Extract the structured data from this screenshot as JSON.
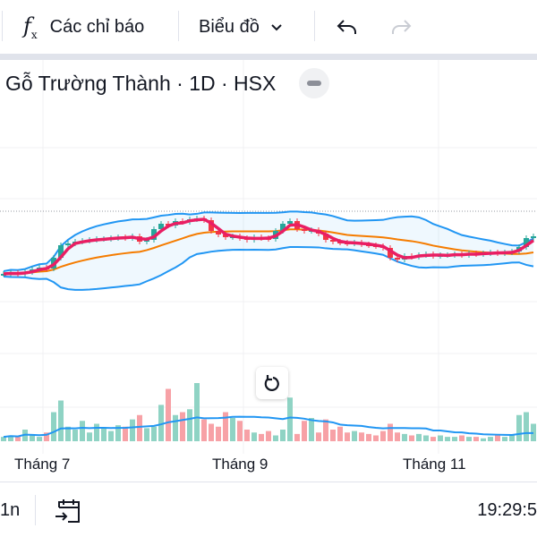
{
  "toolbar": {
    "indicators_label": "Các chỉ báo",
    "chart_type_label": "Biểu đồ"
  },
  "legend": {
    "title": "Gỗ Trường Thành · 1D · HSX"
  },
  "time_axis": [
    "Tháng 7",
    "Tháng 9",
    "Tháng 11"
  ],
  "bottom": {
    "range_label": "1n",
    "clock": "19:29:5"
  },
  "colors": {
    "up": "#26a69a",
    "down": "#f23645",
    "ma_short": "#e91e63",
    "ma_long": "#f57c00",
    "bands": "#2196f3",
    "vol_up": "#8fd3c4",
    "vol_down": "#f7a1a6"
  },
  "chart_data": {
    "type": "candlestick",
    "title": "Gỗ Trường Thành · 1D · HSX",
    "x_tick_labels": [
      "Tháng 7",
      "Tháng 9",
      "Tháng 11"
    ],
    "close": [
      9.4,
      9.5,
      9.4,
      9.6,
      9.9,
      10.1,
      10.0,
      11.2,
      12.6,
      12.8,
      13.0,
      13.1,
      13.2,
      13.3,
      13.3,
      13.4,
      13.5,
      13.4,
      13.6,
      13.0,
      13.2,
      14.4,
      15.0,
      14.8,
      15.3,
      15.2,
      15.5,
      15.6,
      15.4,
      14.2,
      13.8,
      13.5,
      13.6,
      13.4,
      13.2,
      13.5,
      13.4,
      13.3,
      14.2,
      15.0,
      15.3,
      14.4,
      14.2,
      14.3,
      13.9,
      13.2,
      13.0,
      12.9,
      12.8,
      12.9,
      12.7,
      12.6,
      12.5,
      12.3,
      11.2,
      11.0,
      11.4,
      11.3,
      11.5,
      11.6,
      11.4,
      11.5,
      11.5,
      11.6,
      11.5,
      11.7,
      11.6,
      11.7,
      11.8,
      11.7,
      11.8,
      11.9,
      12.4,
      13.4,
      13.6
    ],
    "volume": [
      3,
      4,
      3,
      8,
      4,
      3,
      6,
      20,
      28,
      10,
      8,
      14,
      6,
      12,
      9,
      7,
      11,
      10,
      15,
      18,
      9,
      10,
      25,
      36,
      18,
      20,
      22,
      40,
      15,
      12,
      10,
      20,
      16,
      14,
      8,
      6,
      5,
      7,
      4,
      8,
      30,
      5,
      14,
      16,
      6,
      15,
      8,
      10,
      6,
      7,
      6,
      5,
      4,
      7,
      12,
      6,
      5,
      4,
      5,
      4,
      3,
      4,
      3,
      3,
      4,
      3,
      3,
      2,
      3,
      4,
      3,
      4,
      18,
      20,
      12
    ],
    "indicators": [
      "MA short",
      "MA long",
      "Bollinger Bands",
      "Volume MA"
    ]
  }
}
